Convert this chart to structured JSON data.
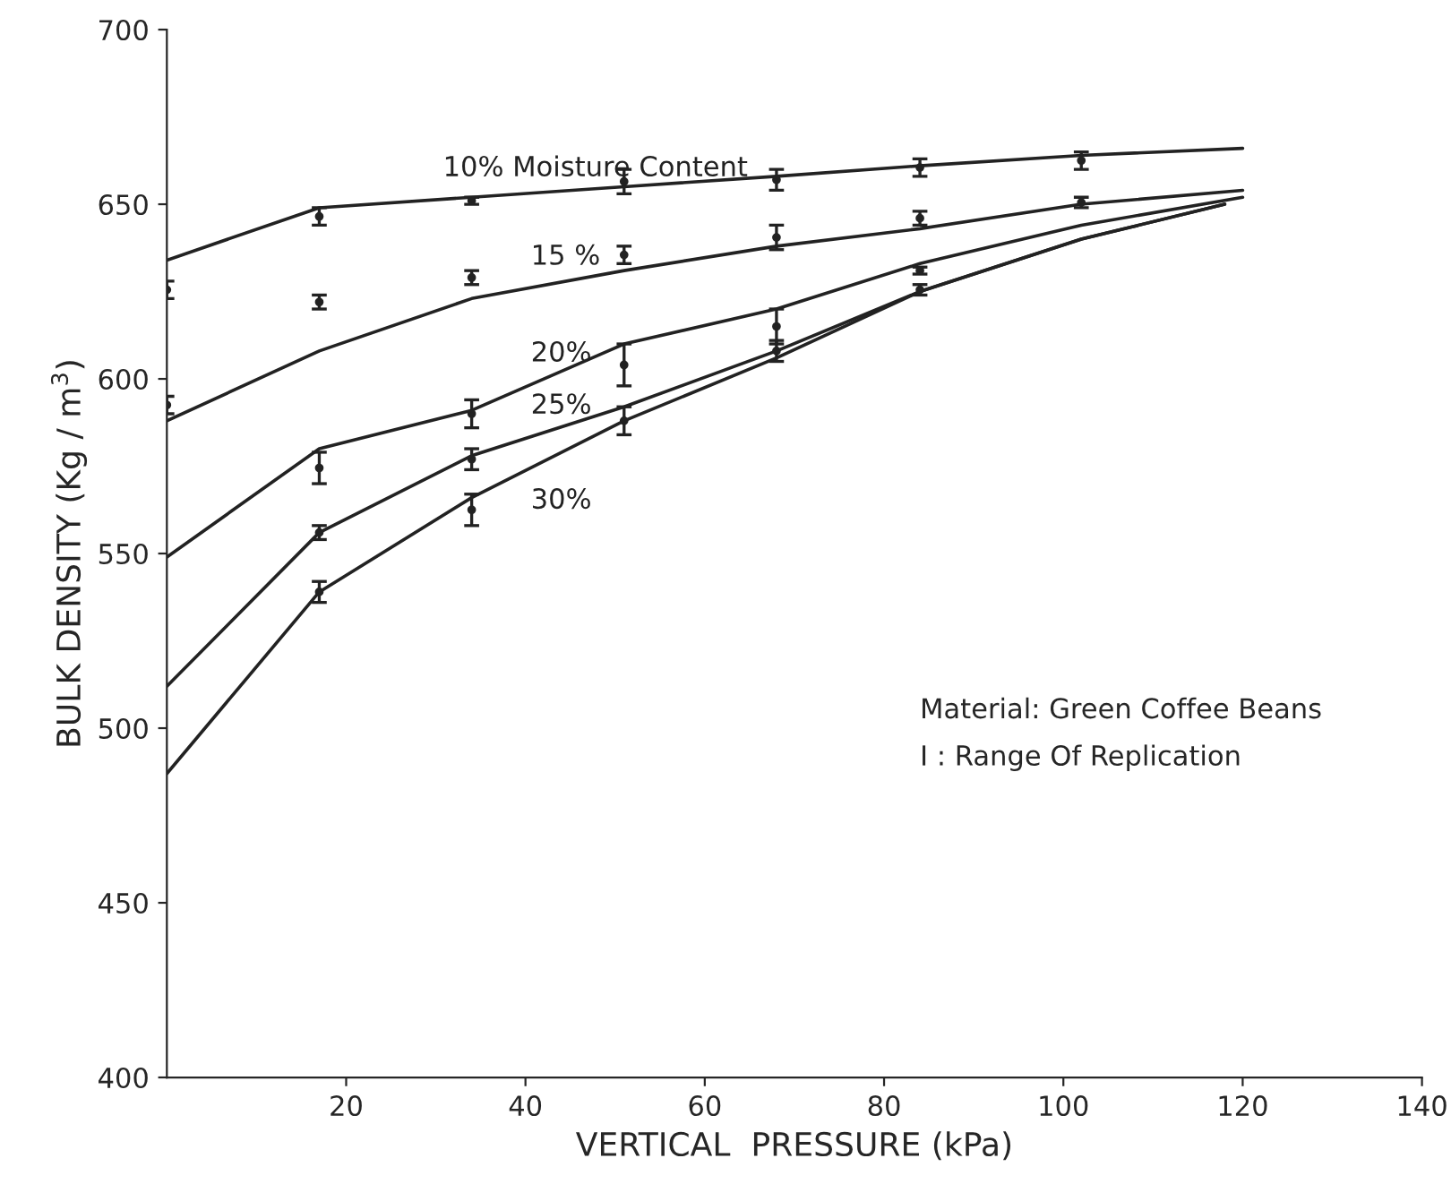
{
  "chart_data": {
    "type": "line",
    "xlabel": "VERTICAL  PRESSURE (kPa)",
    "ylabel": "BULK DENSITY (Kg / m$^{3}$)",
    "xlim": [
      0,
      140
    ],
    "xticks": [
      20,
      40,
      60,
      80,
      100,
      120,
      140
    ],
    "ylim": [
      400,
      700
    ],
    "yticks": [
      400,
      450,
      500,
      550,
      600,
      650,
      700
    ],
    "grid": false,
    "legend": false,
    "marker": "none",
    "line_style": "solid",
    "series": [
      {
        "name": "10% Moisture Content",
        "color": "#222222",
        "x": [
          0,
          17,
          34,
          51,
          68,
          84,
          102,
          120
        ],
        "values": [
          634,
          649,
          652,
          655,
          658,
          661,
          664,
          666
        ]
      },
      {
        "name": "15 %",
        "color": "#222222",
        "x": [
          0,
          17,
          34,
          51,
          68,
          84,
          102,
          120
        ],
        "values": [
          588,
          608,
          623,
          631,
          638,
          643,
          650,
          654
        ]
      },
      {
        "name": "20%",
        "color": "#222222",
        "x": [
          0,
          17,
          34,
          51,
          68,
          84,
          102,
          120
        ],
        "values": [
          549,
          580,
          591,
          610,
          620,
          633,
          644,
          652
        ]
      },
      {
        "name": "25%",
        "color": "#222222",
        "x": [
          0,
          17,
          34,
          51,
          68,
          84,
          102,
          118
        ],
        "values": [
          512,
          556,
          578,
          592,
          608,
          625,
          640,
          650
        ]
      },
      {
        "name": "30%",
        "color": "#222222",
        "x": [
          0,
          17,
          34,
          51,
          68,
          84,
          102,
          118
        ],
        "values": [
          487,
          539,
          566,
          588,
          606,
          625,
          640,
          650
        ]
      },
      {
        "type": "scatter",
        "marker": "none",
        "color": "#222222",
        "x": [
          0,
          17,
          34,
          51,
          68,
          84,
          102
        ],
        "values": [
          625.5,
          646.5,
          651,
          656.5,
          657,
          660.5,
          662.5
        ],
        "errors": [
          2.5,
          2.5,
          1,
          3.5,
          3,
          2.5,
          2.5
        ]
      },
      {
        "type": "scatter",
        "marker": "none",
        "color": "#222222",
        "x": [
          0,
          17,
          34,
          51,
          68,
          84,
          102
        ],
        "values": [
          592.5,
          622,
          629,
          635.5,
          640.5,
          646,
          650.5
        ],
        "errors": [
          2.5,
          2,
          2,
          2.5,
          3.5,
          2,
          1.5
        ]
      },
      {
        "type": "scatter",
        "marker": "none",
        "color": "#222222",
        "x": [
          17,
          34,
          51,
          68,
          84
        ],
        "values": [
          574.5,
          590,
          604,
          615,
          631
        ],
        "errors": [
          4.5,
          4,
          6,
          5,
          1
        ]
      },
      {
        "type": "scatter",
        "marker": "none",
        "color": "#222222",
        "x": [
          17,
          34,
          68,
          84
        ],
        "values": [
          556,
          577,
          608,
          625.5
        ],
        "errors": [
          2,
          3,
          3,
          1.5
        ]
      },
      {
        "type": "scatter",
        "marker": "none",
        "color": "#222222",
        "x": [
          17,
          34,
          51
        ],
        "values": [
          539,
          562.5,
          588
        ],
        "errors": [
          3,
          4.5,
          4
        ]
      }
    ],
    "annotations": [
      "Material: Green Coffee Beans",
      "I : Range Of Replication"
    ]
  }
}
